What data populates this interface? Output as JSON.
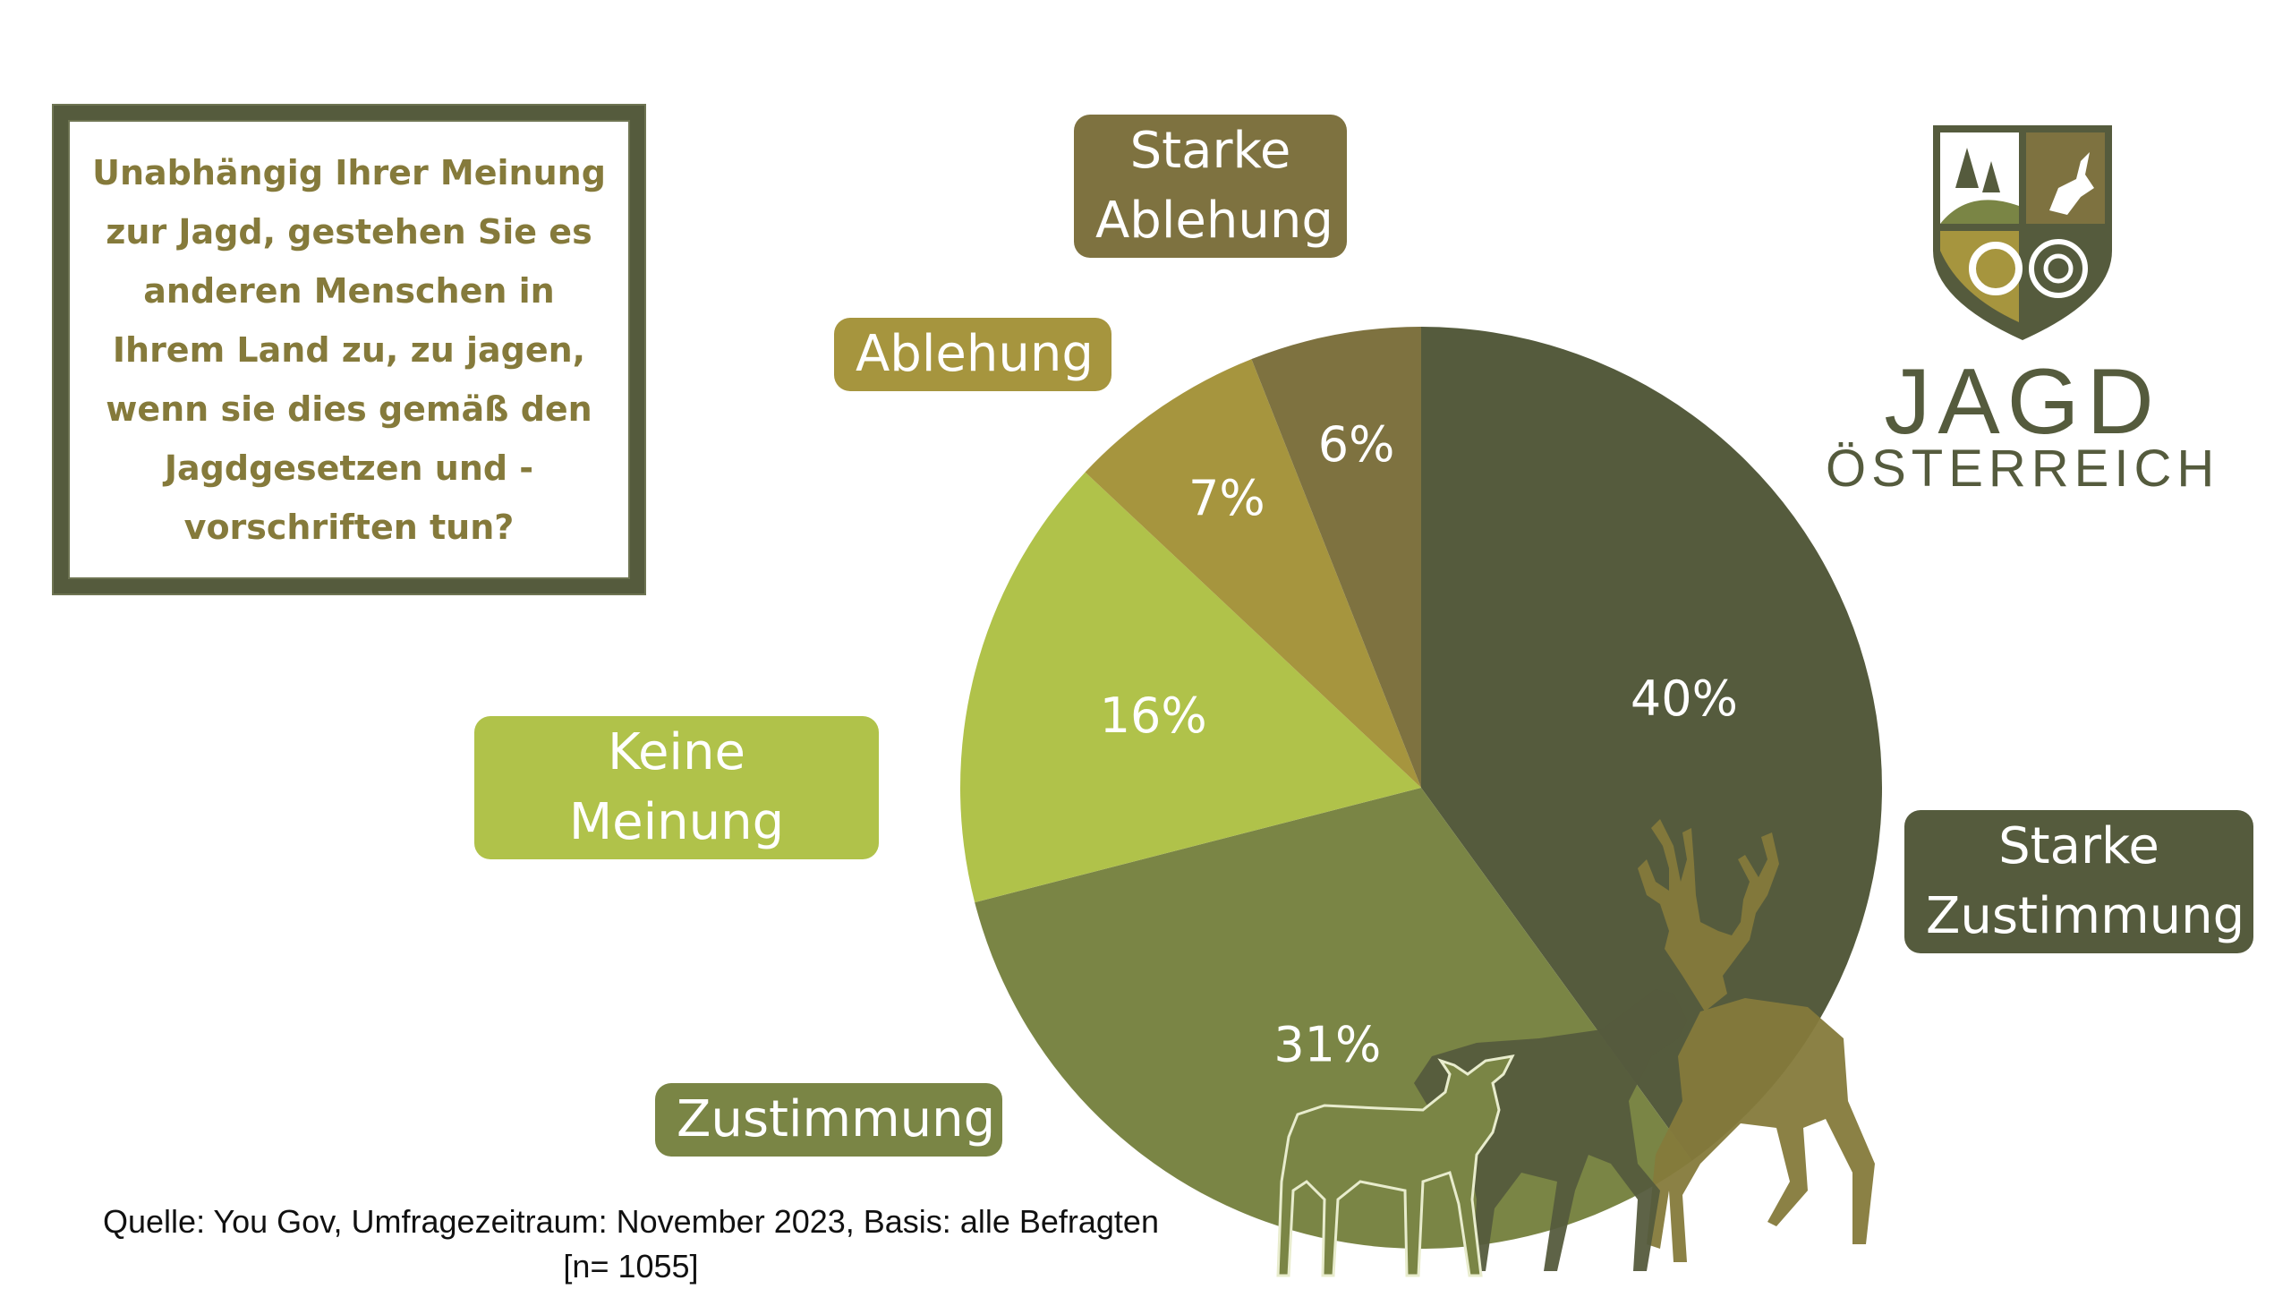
{
  "question": "Unabhängig Ihrer Meinung zur Jagd, gestehen Sie es anderen Menschen in Ihrem Land zu, zu jagen, wenn sie dies gemäß den Jagdgesetzen und -vorschriften tun?",
  "source": "Quelle: You Gov, Umfragezeitraum: November 2023, Basis: alle Befragten\n[n= 1055]",
  "logo": {
    "title": "JAGD",
    "subtitle": "ÖSTERREICH"
  },
  "chart_data": {
    "type": "pie",
    "title": "",
    "categories": [
      "Starke Zustimmung",
      "Zustimmung",
      "Keine Meinung",
      "Ablehung",
      "Starke Ablehung"
    ],
    "values": [
      40,
      31,
      16,
      7,
      6
    ],
    "value_labels": [
      "40%",
      "31%",
      "16%",
      "7%",
      "6%"
    ],
    "label_texts": [
      "Starke\nZustimmung",
      "Zustimmung",
      "Keine Meinung",
      "Ablehung",
      "Starke\nAblehung"
    ],
    "colors": [
      "#555b3d",
      "#7a8545",
      "#b0c24a",
      "#a6953e",
      "#7e7240"
    ],
    "start": "12 o'clock",
    "direction": "clockwise"
  }
}
